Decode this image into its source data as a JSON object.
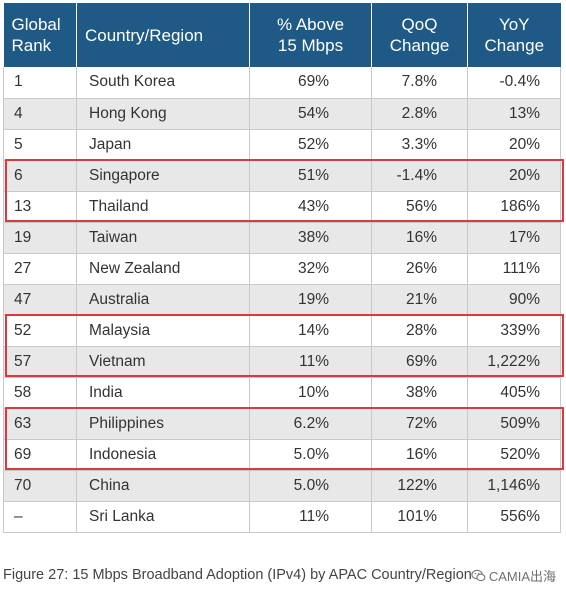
{
  "table": {
    "headers": [
      "Global Rank",
      "Country/Region",
      "% Above 15 Mbps",
      "QoQ Change",
      "YoY Change"
    ],
    "header_lines": [
      [
        "Global",
        "Rank"
      ],
      [
        "Country/Region"
      ],
      [
        "% Above",
        "15 Mbps"
      ],
      [
        "QoQ",
        "Change"
      ],
      [
        "YoY",
        "Change"
      ]
    ],
    "rows": [
      [
        "1",
        "South Korea",
        "69%",
        "7.8%",
        "-0.4%"
      ],
      [
        "4",
        "Hong Kong",
        "54%",
        "2.8%",
        "13%"
      ],
      [
        "5",
        "Japan",
        "52%",
        "3.3%",
        "20%"
      ],
      [
        "6",
        "Singapore",
        "51%",
        "-1.4%",
        "20%"
      ],
      [
        "13",
        "Thailand",
        "43%",
        "56%",
        "186%"
      ],
      [
        "19",
        "Taiwan",
        "38%",
        "16%",
        "17%"
      ],
      [
        "27",
        "New Zealand",
        "32%",
        "26%",
        "111%"
      ],
      [
        "47",
        "Australia",
        "19%",
        "21%",
        "90%"
      ],
      [
        "52",
        "Malaysia",
        "14%",
        "28%",
        "339%"
      ],
      [
        "57",
        "Vietnam",
        "11%",
        "69%",
        "1,222%"
      ],
      [
        "58",
        "India",
        "10%",
        "38%",
        "405%"
      ],
      [
        "63",
        "Philippines",
        "6.2%",
        "72%",
        "509%"
      ],
      [
        "69",
        "Indonesia",
        "5.0%",
        "16%",
        "520%"
      ],
      [
        "70",
        "China",
        "5.0%",
        "122%",
        "1,146%"
      ],
      [
        "–",
        "Sri Lanka",
        "11%",
        "101%",
        "556%"
      ]
    ],
    "highlighted_groups": [
      [
        "Singapore",
        "Thailand"
      ],
      [
        "Malaysia",
        "Vietnam"
      ],
      [
        "Philippines",
        "Indonesia"
      ]
    ]
  },
  "caption": "Figure 27: 15 Mbps Broadband Adoption (IPv4) by APAC Country/Region",
  "watermark": "CAMIA出海",
  "colors": {
    "header_bg": "#1f5a86",
    "highlight": "#d9393f",
    "stripe": "#e8e8e8"
  }
}
